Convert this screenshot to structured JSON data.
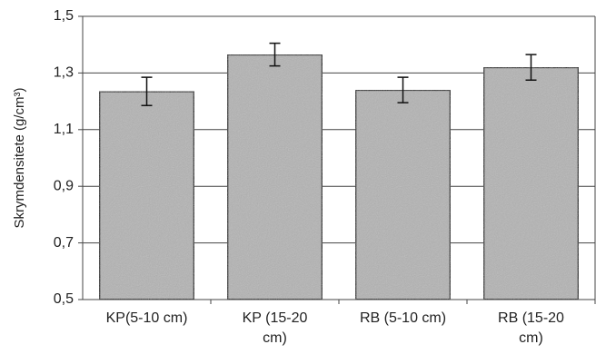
{
  "chart_data": {
    "type": "bar",
    "y_label": "Skrymdensitete (g/cm³)",
    "categories": [
      "KP(5-10 cm)",
      "KP (15-20 cm)",
      "RB (5-10 cm)",
      "RB (15-20 cm)"
    ],
    "values": [
      1.235,
      1.365,
      1.24,
      1.32
    ],
    "errors": [
      0.05,
      0.04,
      0.045,
      0.045
    ],
    "color": "#b3b3b3",
    "ylim": [
      0.5,
      1.5
    ],
    "yticks": [
      {
        "value": 0.5,
        "label": "0,5"
      },
      {
        "value": 0.7,
        "label": "0,7"
      },
      {
        "value": 0.9,
        "label": "0,9"
      },
      {
        "value": 1.1,
        "label": "1,1"
      },
      {
        "value": 1.3,
        "label": "1,3"
      },
      {
        "value": 1.5,
        "label": "1,5"
      }
    ],
    "grid": true
  }
}
